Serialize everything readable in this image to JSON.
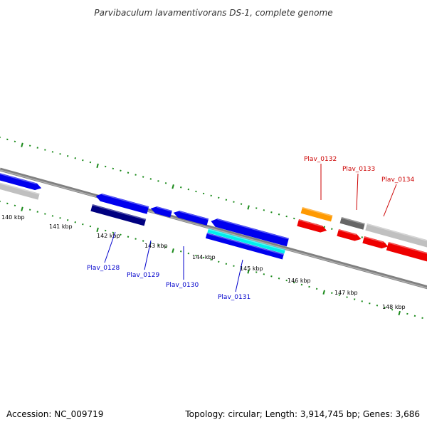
{
  "title": "Parvibaculum lavamentivorans DS-1, complete genome",
  "footer": {
    "accession": "Accession: NC_009719",
    "summary": "Topology: circular; Length: 3,914,745 bp; Genes: 3,686"
  },
  "colors": {
    "dots": "#1a8a1a",
    "backbone": "#808080",
    "blue": "#0000ee",
    "navy": "#000080",
    "cyan": "#00eeee",
    "red": "#ee0000",
    "orange": "#ff9900",
    "grey": "#c0c0c0",
    "darkgrey": "#666666",
    "label_blue": "#0000cc",
    "label_red": "#cc0000"
  },
  "ticks": [
    "140 kbp",
    "141 kbp",
    "142 kbp",
    "143 kbp",
    "144 kbp",
    "145 kbp",
    "146 kbp",
    "147 kbp",
    "148 kbp"
  ],
  "labels": [
    {
      "text": "Plav_0128",
      "color": "label_blue"
    },
    {
      "text": "Plav_0129",
      "color": "label_blue"
    },
    {
      "text": "Plav_0130",
      "color": "label_blue"
    },
    {
      "text": "Plav_0131",
      "color": "label_blue"
    },
    {
      "text": "Plav_0132",
      "color": "label_red"
    },
    {
      "text": "Plav_0133",
      "color": "label_red"
    },
    {
      "text": "Plav_0134",
      "color": "label_red"
    }
  ]
}
